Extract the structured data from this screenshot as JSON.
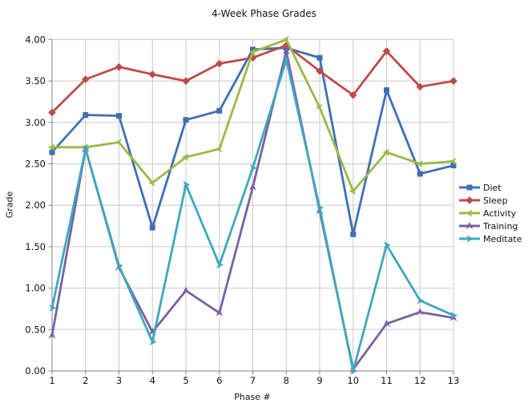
{
  "chart_data": {
    "type": "line",
    "title": "4-Week Phase Grades",
    "xlabel": "Phase #",
    "ylabel": "Grade",
    "x": [
      1,
      2,
      3,
      4,
      5,
      6,
      7,
      8,
      9,
      10,
      11,
      12,
      13
    ],
    "ylim": [
      0,
      4
    ],
    "ytick_step": 0.5,
    "ytick_labels": [
      "0.00",
      "0.50",
      "1.00",
      "1.50",
      "2.00",
      "2.50",
      "3.00",
      "3.50",
      "4.00"
    ],
    "grid": true,
    "legend_position": "right",
    "colors": {
      "grid": "#c9c9c9",
      "axis": "#808080",
      "text": "#111111"
    },
    "series": [
      {
        "name": "Diet",
        "color": "#3f6fb4",
        "marker": "square",
        "values": [
          2.64,
          3.09,
          3.08,
          1.73,
          3.03,
          3.14,
          3.88,
          3.9,
          3.78,
          1.65,
          3.39,
          2.38,
          2.48
        ]
      },
      {
        "name": "Sleep",
        "color": "#be4b48",
        "marker": "diamond",
        "values": [
          3.12,
          3.52,
          3.67,
          3.58,
          3.5,
          3.71,
          3.78,
          3.93,
          3.62,
          3.33,
          3.86,
          3.43,
          3.5
        ]
      },
      {
        "name": "Activity",
        "color": "#9aba45",
        "marker": "tri-left",
        "values": [
          2.7,
          2.7,
          2.76,
          2.27,
          2.58,
          2.68,
          3.85,
          4.0,
          3.18,
          2.17,
          2.64,
          2.5,
          2.53
        ]
      },
      {
        "name": "Training",
        "color": "#7b5fa5",
        "marker": "star",
        "values": [
          0.43,
          2.68,
          1.25,
          0.47,
          0.97,
          0.7,
          2.22,
          3.86,
          1.93,
          0.02,
          0.57,
          0.71,
          0.64
        ]
      },
      {
        "name": "Meditate",
        "color": "#3ea8be",
        "marker": "tri-right",
        "values": [
          0.76,
          2.68,
          1.27,
          0.35,
          2.25,
          1.28,
          2.45,
          3.76,
          1.97,
          0.0,
          1.52,
          0.85,
          0.67
        ]
      }
    ]
  }
}
